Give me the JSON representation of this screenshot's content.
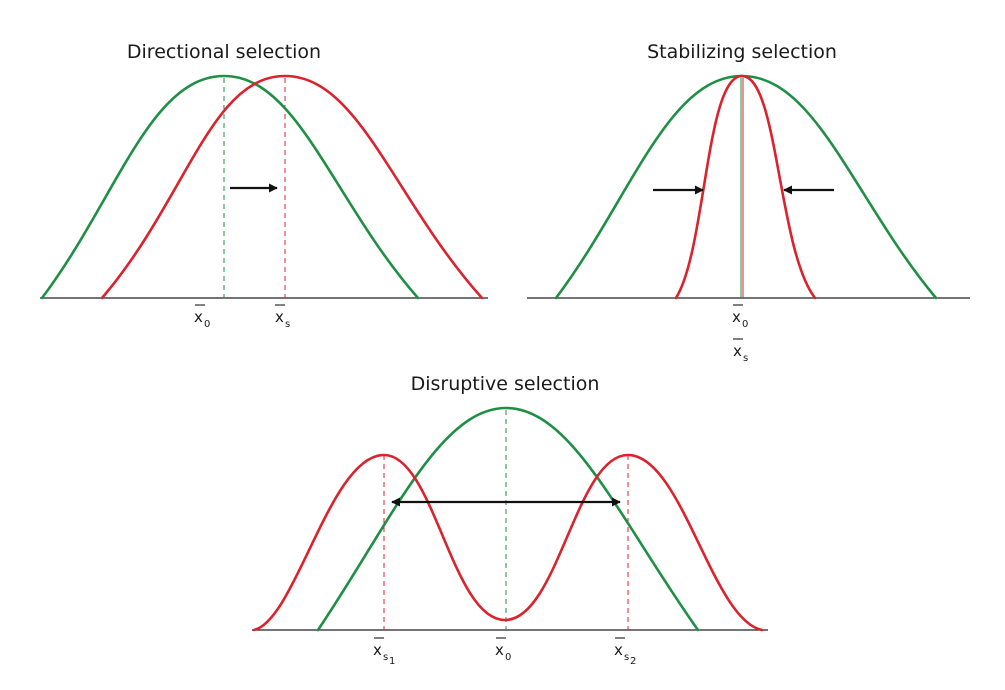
{
  "panels": {
    "directional": {
      "title": "Directional selection",
      "labels": {
        "x0": {
          "base": "x",
          "sub": "0"
        },
        "xs": {
          "base": "x",
          "sub": "s"
        }
      }
    },
    "stabilizing": {
      "title": "Stabilizing selection",
      "labels": {
        "x0": {
          "base": "x",
          "sub": "0"
        },
        "xs": {
          "base": "x",
          "sub": "s"
        }
      }
    },
    "disruptive": {
      "title": "Disruptive selection",
      "labels": {
        "xs1": {
          "base": "x",
          "sub": "s",
          "subsub": "1"
        },
        "x0": {
          "base": "x",
          "sub": "0"
        },
        "xs2": {
          "base": "x",
          "sub": "s",
          "subsub": "2"
        }
      }
    }
  },
  "colors": {
    "original_population": "#1f8f45",
    "selected_population": "#d9232d",
    "arrow": "#111111"
  }
}
